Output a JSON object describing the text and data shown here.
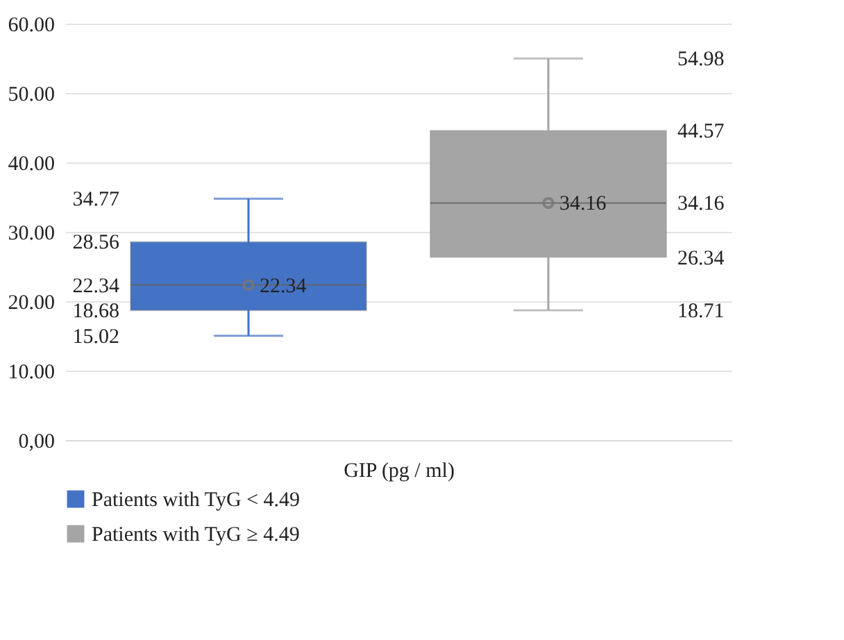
{
  "chart_data": {
    "type": "box",
    "xlabel": "GIP (pg / ml)",
    "categories": [
      null
    ],
    "series": [
      {
        "name": "Patients with TyG < 4.49",
        "color": "#4472c4",
        "boxes": [
          {
            "low": 15.02,
            "q1": 18.68,
            "median": 22.34,
            "q3": 28.56,
            "high": 34.77,
            "mean": 22.34
          }
        ]
      },
      {
        "name": "Patients with TyG ≥ 4.49",
        "color": "#a5a5a5",
        "boxes": [
          {
            "low": 18.71,
            "q1": 26.34,
            "median": 34.16,
            "q3": 44.57,
            "high": 54.98,
            "mean": 34.16
          }
        ]
      }
    ],
    "annotations": [
      "15.02",
      "18.68",
      "22.34",
      "28.56",
      "34.77",
      "22.34",
      "18.71",
      "26.34",
      "34.16",
      "44.57",
      "54.98",
      "34.16"
    ],
    "ylim": [
      0,
      60
    ],
    "yticks": [
      {
        "value": 0,
        "label": "0,00"
      },
      {
        "value": 10,
        "label": "10.00"
      },
      {
        "value": 20,
        "label": "20.00"
      },
      {
        "value": 30,
        "label": "30.00"
      },
      {
        "value": 40,
        "label": "40.00"
      },
      {
        "value": 50,
        "label": "50.00"
      },
      {
        "value": 60,
        "label": "60.00"
      }
    ],
    "grid": "y",
    "legend": "bottom",
    "marker": "circle",
    "data_labels": true
  }
}
